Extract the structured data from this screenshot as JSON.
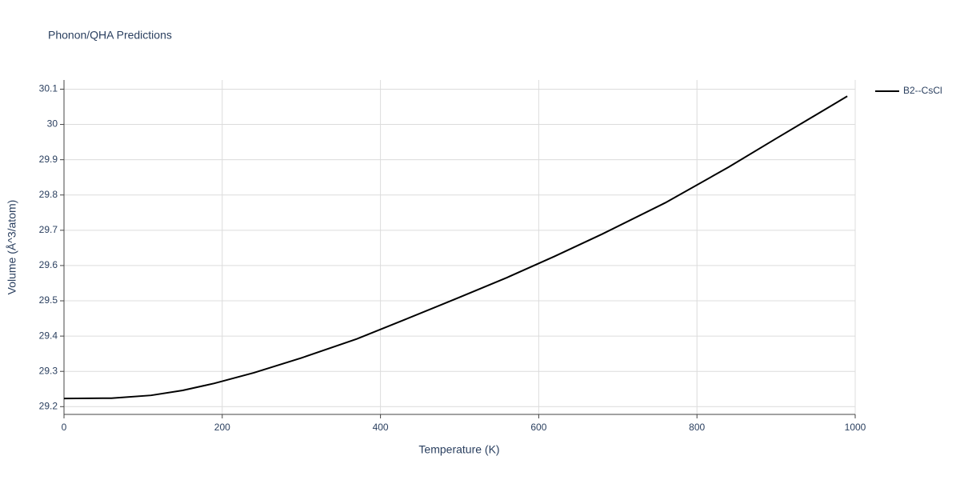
{
  "chart_data": {
    "type": "line",
    "title": "Phonon/QHA Predictions",
    "x_label": "Temperature (K)",
    "y_label": "Volume (Å^3/atom)",
    "x": [
      0,
      60,
      110,
      150,
      190,
      240,
      300,
      370,
      430,
      500,
      560,
      620,
      680,
      760,
      840,
      900,
      990
    ],
    "series": [
      {
        "name": "B2--CsCl",
        "color": "#000000",
        "values": [
          29.223,
          29.224,
          29.232,
          29.246,
          29.266,
          29.296,
          29.338,
          29.392,
          29.446,
          29.51,
          29.566,
          29.626,
          29.689,
          29.778,
          29.879,
          29.96,
          30.08
        ]
      }
    ],
    "xlim": [
      0,
      1000
    ],
    "xticks": [
      0,
      200,
      400,
      600,
      800,
      1000
    ],
    "ylim": [
      29.178,
      30.126
    ],
    "yticks": [
      29.2,
      29.3,
      29.4,
      29.5,
      29.6,
      29.7,
      29.8,
      29.9,
      30,
      30.1
    ],
    "grid": true,
    "legend": "right"
  }
}
